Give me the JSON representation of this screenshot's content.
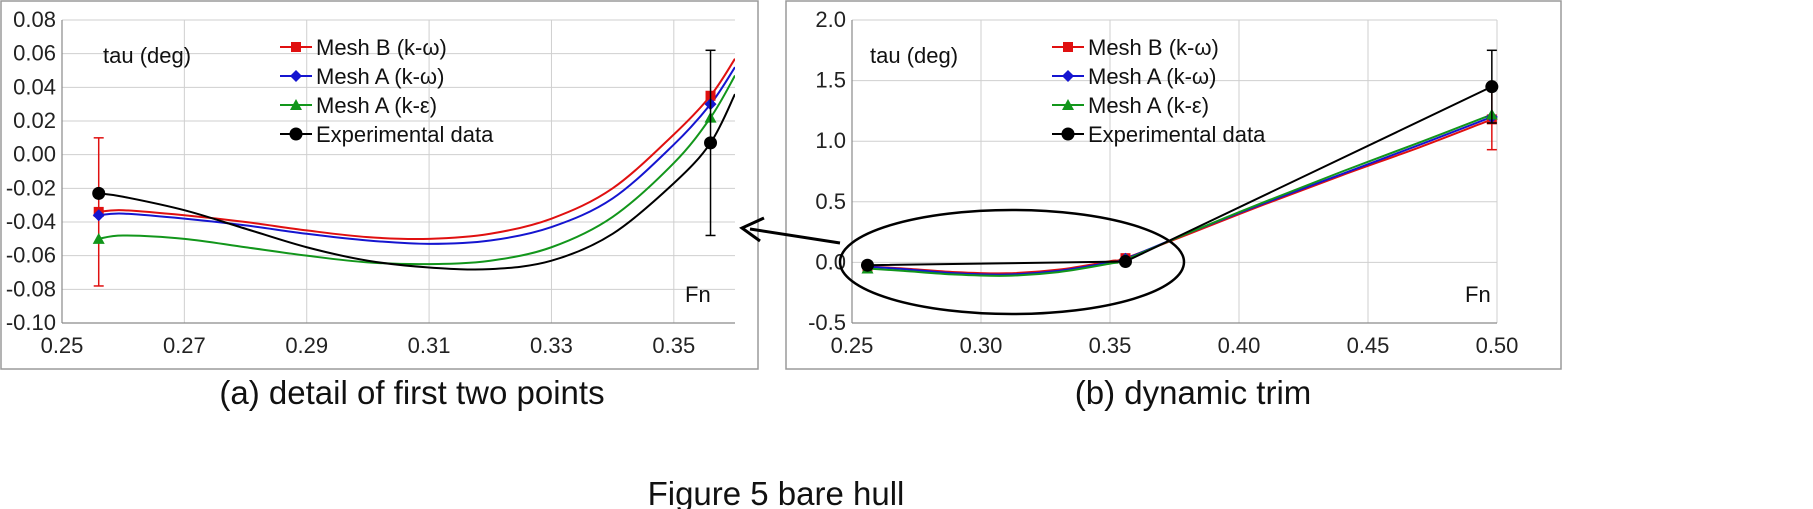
{
  "figure": {
    "caption": "Figure 5 bare hull"
  },
  "chart_data": [
    {
      "type": "line",
      "caption": "(a)  detail of first two points",
      "annotation_y": "tau (deg)",
      "annotation_x": "Fn",
      "xlim": [
        0.25,
        0.36
      ],
      "ylim": [
        -0.1,
        0.08
      ],
      "x_ticks": [
        "0.25",
        "0.27",
        "0.29",
        "0.31",
        "0.33",
        "0.35"
      ],
      "y_ticks": [
        "0.08",
        "0.06",
        "0.04",
        "0.02",
        "0.00",
        "-0.02",
        "-0.04",
        "-0.06",
        "-0.08",
        "-0.10"
      ],
      "grid": true,
      "legend_position": "top-center",
      "series": [
        {
          "name": "Mesh B (k-ω)",
          "color": "#e01010",
          "marker": "square",
          "x": [
            0.256,
            0.356
          ],
          "y": [
            -0.034,
            0.035
          ],
          "error": [
            0.044,
            0
          ],
          "curve_x": [
            0.256,
            0.26,
            0.27,
            0.28,
            0.29,
            0.3,
            0.31,
            0.32,
            0.33,
            0.34,
            0.35,
            0.356,
            0.36
          ],
          "curve_y": [
            -0.034,
            -0.033,
            -0.036,
            -0.04,
            -0.045,
            -0.049,
            -0.05,
            -0.047,
            -0.038,
            -0.02,
            0.012,
            0.035,
            0.057
          ]
        },
        {
          "name": "Mesh A (k-ω)",
          "color": "#1515d0",
          "marker": "diamond",
          "x": [
            0.256,
            0.356
          ],
          "y": [
            -0.036,
            0.03
          ],
          "error": [
            0,
            0
          ],
          "curve_x": [
            0.256,
            0.26,
            0.27,
            0.28,
            0.29,
            0.3,
            0.31,
            0.32,
            0.33,
            0.34,
            0.35,
            0.356,
            0.36
          ],
          "curve_y": [
            -0.036,
            -0.035,
            -0.038,
            -0.042,
            -0.047,
            -0.051,
            -0.053,
            -0.051,
            -0.043,
            -0.026,
            0.006,
            0.03,
            0.052
          ]
        },
        {
          "name": "Mesh A (k-ε)",
          "color": "#12961b",
          "marker": "triangle",
          "x": [
            0.256,
            0.356
          ],
          "y": [
            -0.05,
            0.022
          ],
          "error": [
            0,
            0
          ],
          "curve_x": [
            0.256,
            0.26,
            0.27,
            0.28,
            0.29,
            0.3,
            0.31,
            0.32,
            0.33,
            0.34,
            0.35,
            0.356,
            0.36
          ],
          "curve_y": [
            -0.05,
            -0.048,
            -0.05,
            -0.055,
            -0.06,
            -0.064,
            -0.065,
            -0.063,
            -0.055,
            -0.037,
            -0.005,
            0.022,
            0.047
          ]
        },
        {
          "name": "Experimental data",
          "color": "#000000",
          "marker": "circle",
          "x": [
            0.256,
            0.356
          ],
          "y": [
            -0.023,
            0.007
          ],
          "error": [
            0,
            0.055
          ],
          "curve_x": [
            0.256,
            0.26,
            0.27,
            0.28,
            0.29,
            0.3,
            0.31,
            0.32,
            0.33,
            0.34,
            0.35,
            0.356,
            0.36
          ],
          "curve_y": [
            -0.023,
            -0.025,
            -0.033,
            -0.044,
            -0.055,
            -0.063,
            -0.067,
            -0.068,
            -0.063,
            -0.047,
            -0.017,
            0.007,
            0.036
          ]
        }
      ]
    },
    {
      "type": "line",
      "caption": "(b)  dynamic trim",
      "annotation_y": "tau (deg)",
      "annotation_x": "Fn",
      "xlim": [
        0.25,
        0.5
      ],
      "ylim": [
        -0.5,
        2.0
      ],
      "x_ticks": [
        "0.25",
        "0.30",
        "0.35",
        "0.40",
        "0.45",
        "0.50"
      ],
      "y_ticks": [
        "2.0",
        "1.5",
        "1.0",
        "0.5",
        "0.0",
        "-0.5"
      ],
      "grid": true,
      "legend_position": "top-center",
      "series": [
        {
          "name": "Mesh B (k-ω)",
          "color": "#e01010",
          "marker": "square",
          "x": [
            0.256,
            0.356,
            0.498
          ],
          "y": [
            -0.034,
            0.035,
            1.18
          ],
          "error": [
            0,
            0,
            0.25
          ],
          "curve_x": [
            0.256,
            0.27,
            0.29,
            0.31,
            0.33,
            0.35,
            0.356,
            0.38,
            0.41,
            0.44,
            0.47,
            0.498
          ],
          "curve_y": [
            -0.034,
            -0.05,
            -0.08,
            -0.09,
            -0.06,
            0.01,
            0.035,
            0.23,
            0.48,
            0.72,
            0.95,
            1.18
          ]
        },
        {
          "name": "Mesh A (k-ω)",
          "color": "#1515d0",
          "marker": "diamond",
          "x": [
            0.256,
            0.356,
            0.498
          ],
          "y": [
            -0.036,
            0.03,
            1.2
          ],
          "error": [
            0,
            0,
            0
          ],
          "curve_x": [
            0.256,
            0.27,
            0.29,
            0.31,
            0.33,
            0.35,
            0.356,
            0.38,
            0.41,
            0.44,
            0.47,
            0.498
          ],
          "curve_y": [
            -0.036,
            -0.055,
            -0.09,
            -0.1,
            -0.07,
            0.0,
            0.03,
            0.24,
            0.49,
            0.73,
            0.97,
            1.2
          ]
        },
        {
          "name": "Mesh A (k-ε)",
          "color": "#12961b",
          "marker": "triangle",
          "x": [
            0.256,
            0.356,
            0.498
          ],
          "y": [
            -0.05,
            0.022,
            1.22
          ],
          "error": [
            0,
            0,
            0
          ],
          "curve_x": [
            0.256,
            0.27,
            0.29,
            0.31,
            0.33,
            0.35,
            0.356,
            0.38,
            0.41,
            0.44,
            0.47,
            0.498
          ],
          "curve_y": [
            -0.05,
            -0.07,
            -0.1,
            -0.11,
            -0.08,
            -0.01,
            0.022,
            0.24,
            0.5,
            0.75,
            0.99,
            1.22
          ]
        },
        {
          "name": "Experimental data",
          "color": "#000000",
          "marker": "circle",
          "x": [
            0.256,
            0.356,
            0.498
          ],
          "y": [
            -0.023,
            0.007,
            1.45
          ],
          "error": [
            0,
            0,
            0.3
          ],
          "curve_x": [
            0.256,
            0.356,
            0.498
          ],
          "curve_y": [
            -0.023,
            0.007,
            1.45
          ]
        }
      ]
    }
  ]
}
